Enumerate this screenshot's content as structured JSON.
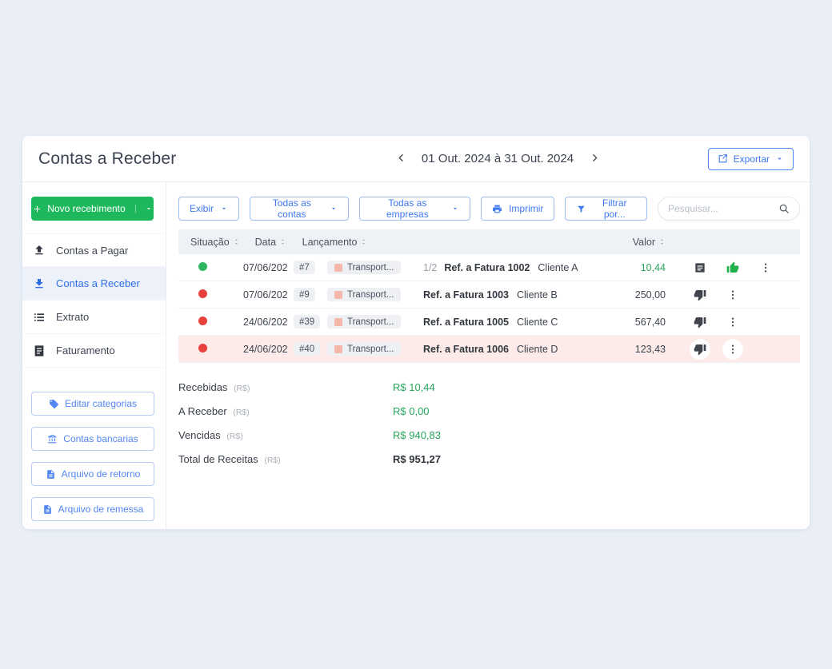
{
  "header": {
    "title": "Contas a Receber",
    "date_range": "01 Out. 2024 à 31 Out. 2024",
    "export_label": "Exportar"
  },
  "sidebar": {
    "new_button_label": "Novo recebimento",
    "items": [
      {
        "label": "Contas a Pagar",
        "icon": "upload",
        "active": false
      },
      {
        "label": "Contas a Receber",
        "icon": "download",
        "active": true
      },
      {
        "label": "Extrato",
        "icon": "list",
        "active": false
      },
      {
        "label": "Faturamento",
        "icon": "document",
        "active": false
      }
    ],
    "action_buttons": [
      {
        "label": "Editar categorias",
        "icon": "tag"
      },
      {
        "label": "Contas bancarias",
        "icon": "bank"
      },
      {
        "label": "Arquivo de retorno",
        "icon": "file"
      },
      {
        "label": "Arquivo de remessa",
        "icon": "file"
      }
    ]
  },
  "toolbar": {
    "buttons": [
      {
        "label": "Exibir",
        "icon": null,
        "caret": true
      },
      {
        "label": "Todas as contas",
        "icon": null,
        "caret": true
      },
      {
        "label": "Todas as empresas",
        "icon": null,
        "caret": true
      },
      {
        "label": "Imprimir",
        "icon": "printer",
        "caret": false
      },
      {
        "label": "Filtrar por...",
        "icon": "filter",
        "caret": false
      }
    ],
    "search_placeholder": "Pesquisar..."
  },
  "table": {
    "columns": {
      "situacao": "Situação",
      "data": "Data",
      "lancamento": "Lançamento",
      "valor": "Valor"
    },
    "rows": [
      {
        "status": "green",
        "date": "07/06/202",
        "id": "#7",
        "category": "Transport...",
        "installment": "1/2",
        "ref": "Ref. a Fatura 1002",
        "client": "Cliente A",
        "value": "10,44",
        "value_green": true,
        "actions": [
          "note",
          "thumb-up"
        ],
        "highlighted": false
      },
      {
        "status": "red",
        "date": "07/06/202",
        "id": "#9",
        "category": "Transport...",
        "installment": "",
        "ref": "Ref. a Fatura 1003",
        "client": "Cliente B",
        "value": "250,00",
        "value_green": false,
        "actions": [
          "thumb-down"
        ],
        "highlighted": false
      },
      {
        "status": "red",
        "date": "24/06/202",
        "id": "#39",
        "category": "Transport...",
        "installment": "",
        "ref": "Ref. a Fatura 1005",
        "client": "Cliente C",
        "value": "567,40",
        "value_green": false,
        "actions": [
          "thumb-down"
        ],
        "highlighted": false
      },
      {
        "status": "red",
        "date": "24/06/202",
        "id": "#40",
        "category": "Transport...",
        "installment": "",
        "ref": "Ref. a Fatura 1006",
        "client": "Cliente D",
        "value": "123,43",
        "value_green": false,
        "actions": [
          "thumb-down"
        ],
        "highlighted": true
      }
    ]
  },
  "summary": [
    {
      "label": "Recebidas",
      "unit": "(R$)",
      "value": "R$ 10,44",
      "green": true,
      "bold": false
    },
    {
      "label": "A Receber",
      "unit": "(R$)",
      "value": "R$ 0,00",
      "green": true,
      "bold": false
    },
    {
      "label": "Vencidas",
      "unit": "(R$)",
      "value": "R$ 940,83",
      "green": true,
      "bold": false
    },
    {
      "label": "Total de Receitas",
      "unit": "(R$)",
      "value": "R$ 951,27",
      "green": false,
      "bold": true
    }
  ],
  "colors": {
    "page_background": "#e9eef7",
    "accent_blue": "#3e78f0",
    "primary_green_button": "#1eb85c",
    "value_green": "#27a65b",
    "status_green": "#2eb55f",
    "status_red": "#e8403c",
    "highlight_row": "#fcebe9",
    "category_swatch": "#f5b7a9"
  }
}
